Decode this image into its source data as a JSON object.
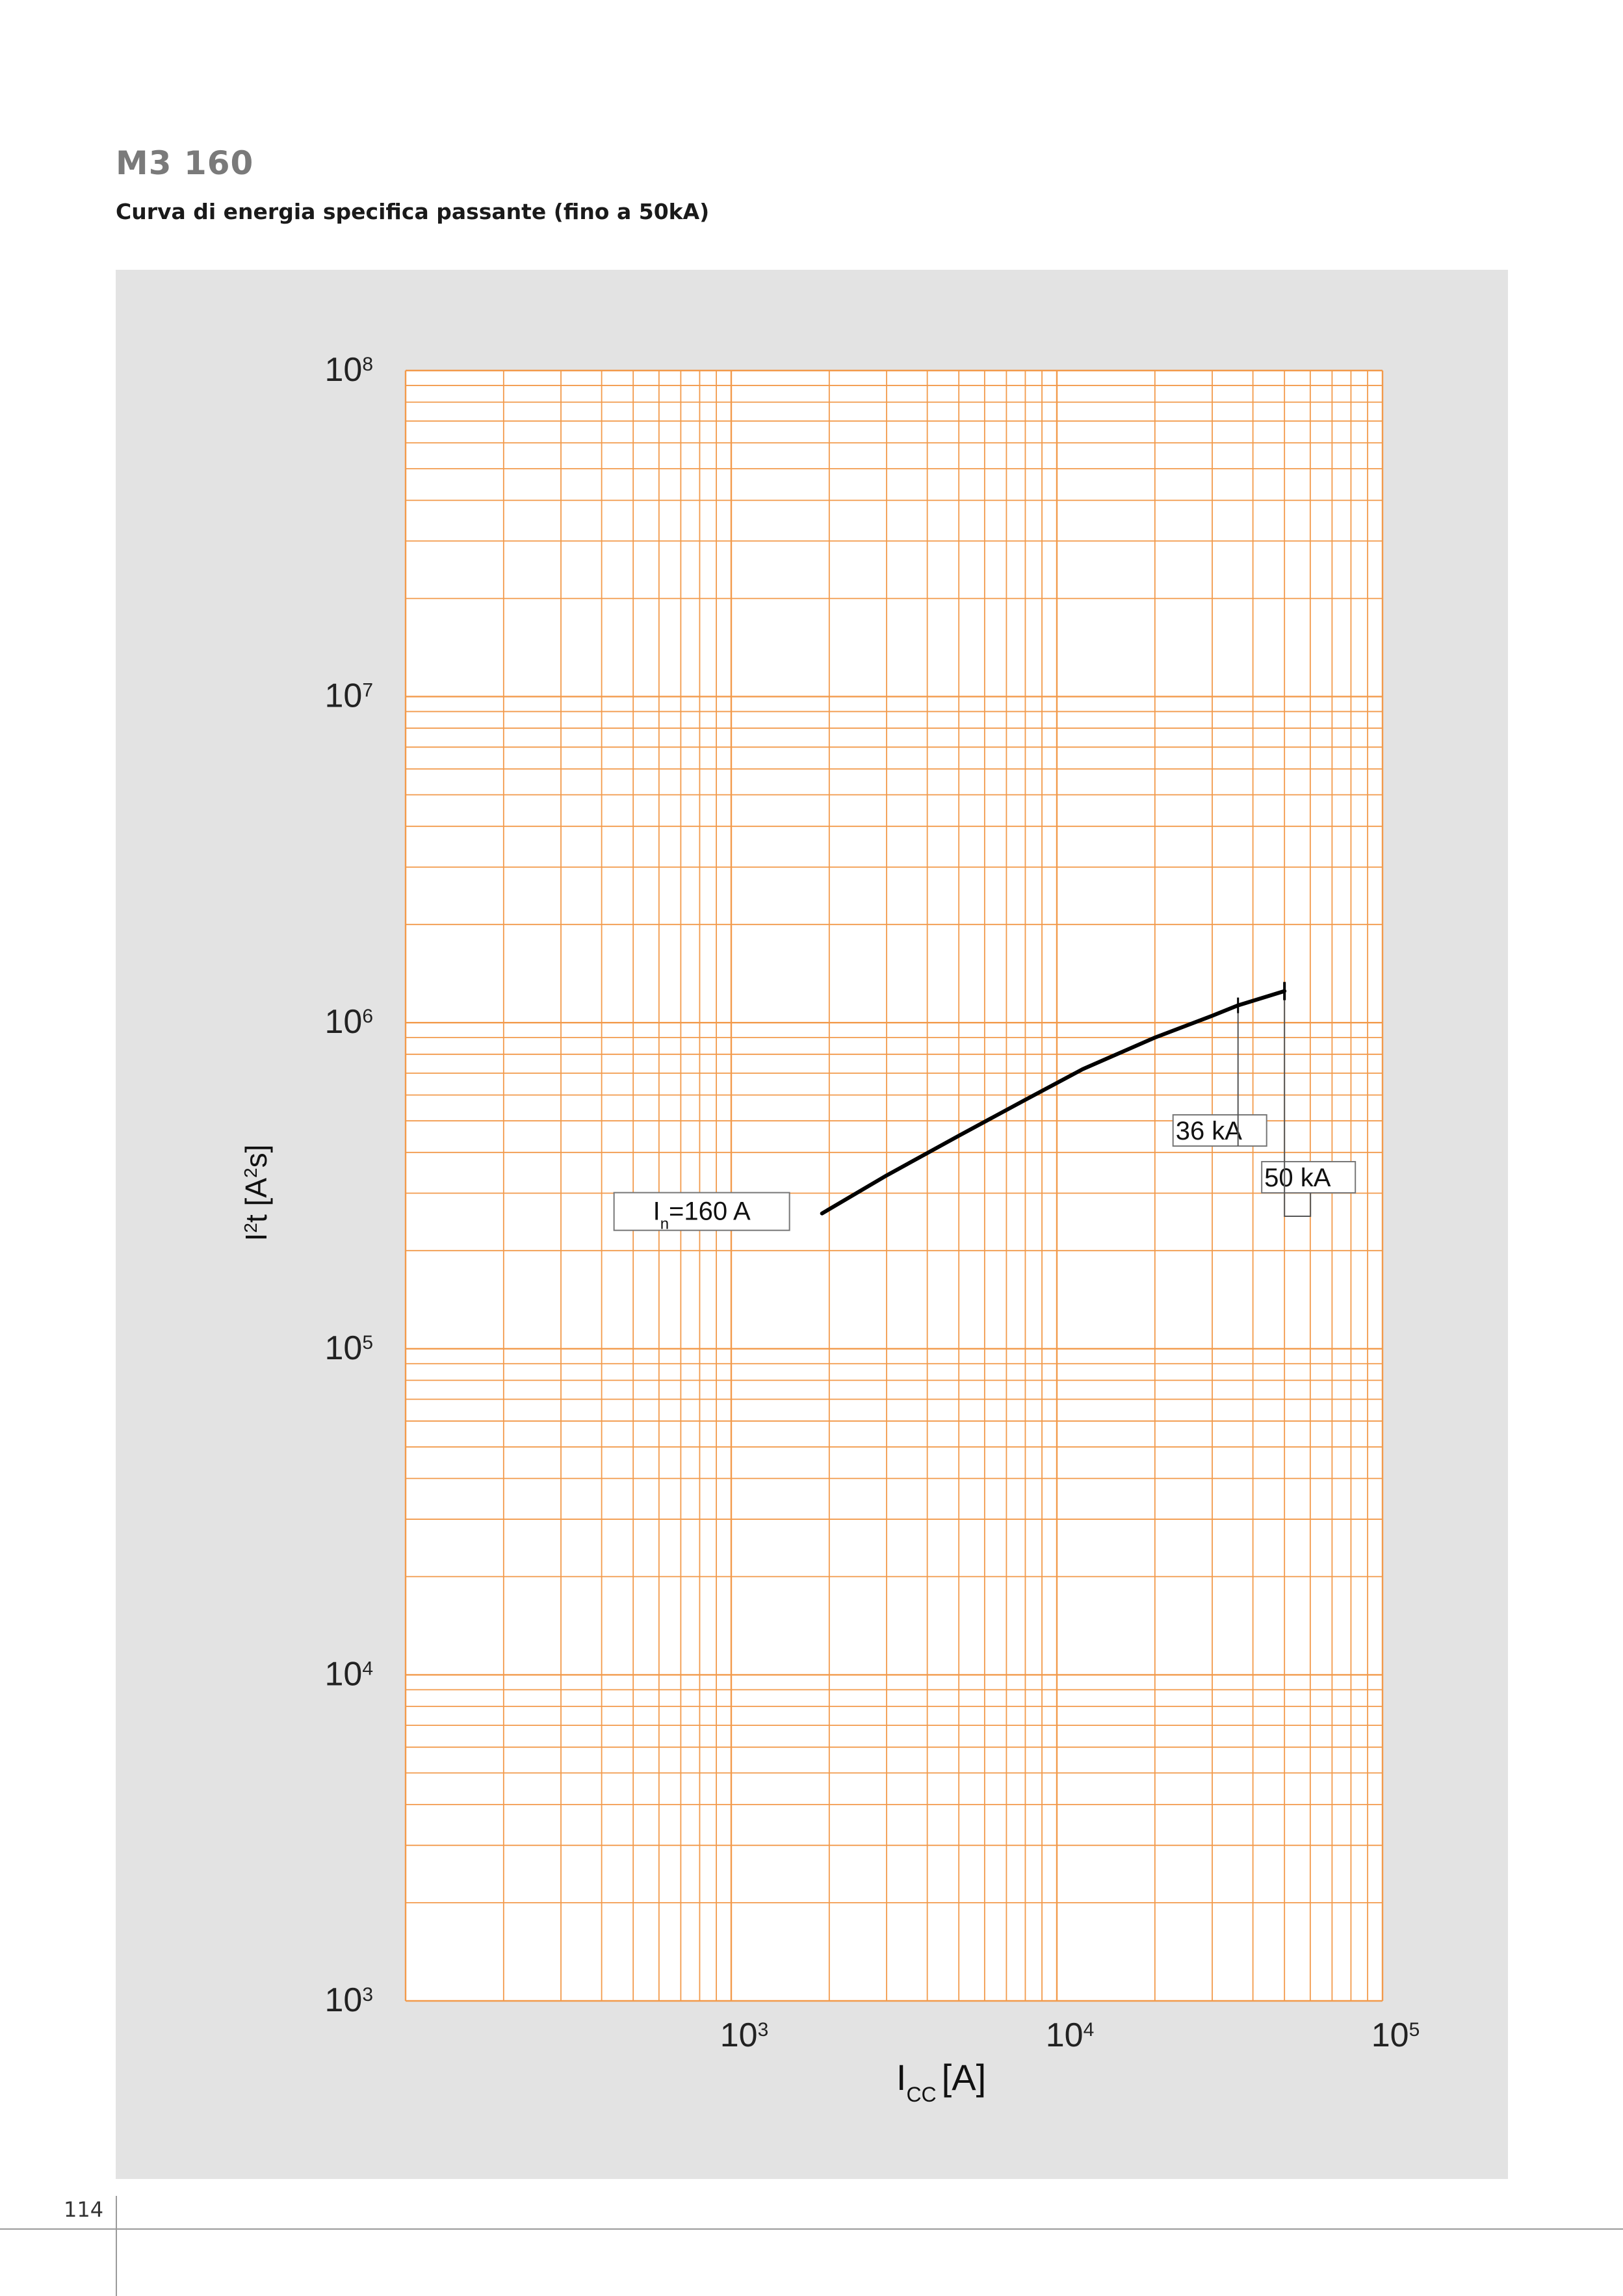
{
  "page": {
    "title": "M3 160",
    "subtitle": "Curva di energia specifica passante (fino a 50kA)",
    "page_number": "114"
  },
  "colors": {
    "grid": "#f29a4b",
    "curve": "#000000",
    "panel": "#e3e3e3",
    "plot_bg": "#ffffff"
  },
  "chart_data": {
    "type": "line",
    "title": "",
    "xlabel": {
      "main": "I",
      "sub": "CC",
      "unit": "[A]"
    },
    "ylabel": {
      "main": "I",
      "sup": "2",
      "rest": "t  [A",
      "sup2": "2",
      "end": "s]"
    },
    "x_scale": "log",
    "y_scale": "log",
    "xlim": [
      100,
      100000
    ],
    "ylim": [
      1000,
      100000000
    ],
    "x_ticks": [
      {
        "value": 1000,
        "base": "10",
        "exp": "3"
      },
      {
        "value": 10000,
        "base": "10",
        "exp": "4"
      },
      {
        "value": 100000,
        "base": "10",
        "exp": "5"
      }
    ],
    "y_ticks": [
      {
        "value": 100000000,
        "base": "10",
        "exp": "8"
      },
      {
        "value": 10000000,
        "base": "10",
        "exp": "7"
      },
      {
        "value": 1000000,
        "base": "10",
        "exp": "6"
      },
      {
        "value": 100000,
        "base": "10",
        "exp": "5"
      },
      {
        "value": 10000,
        "base": "10",
        "exp": "4"
      },
      {
        "value": 1000,
        "base": "10",
        "exp": "3"
      }
    ],
    "grid": true,
    "series": [
      {
        "name": "In=160 A",
        "x": [
          1900,
          3000,
          5000,
          8000,
          12000,
          20000,
          30000,
          36000,
          50000
        ],
        "y": [
          260000,
          340000,
          450000,
          580000,
          720000,
          900000,
          1050000,
          1130000,
          1250000
        ]
      }
    ],
    "annotations": [
      {
        "id": "in-label",
        "label_main": "I",
        "label_sub": "n",
        "label_rest": "=160 A",
        "x": 1900,
        "y": 260000
      },
      {
        "id": "label-36ka",
        "text": "36 kA",
        "x": 36000,
        "y": 1130000
      },
      {
        "id": "label-50ka",
        "text": "50 kA",
        "x": 50000,
        "y": 1250000
      }
    ]
  }
}
